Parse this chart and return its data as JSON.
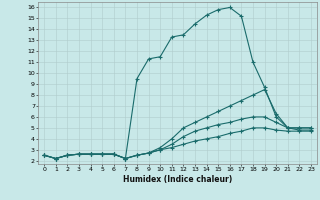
{
  "xlabel": "Humidex (Indice chaleur)",
  "bg_color": "#c8e8e8",
  "grid_color": "#b0cccc",
  "line_color": "#1a6b6b",
  "xlim": [
    -0.5,
    23.5
  ],
  "ylim": [
    1.7,
    16.5
  ],
  "xticks": [
    0,
    1,
    2,
    3,
    4,
    5,
    6,
    7,
    8,
    9,
    10,
    11,
    12,
    13,
    14,
    15,
    16,
    17,
    18,
    19,
    20,
    21,
    22,
    23
  ],
  "yticks": [
    2,
    3,
    4,
    5,
    6,
    7,
    8,
    9,
    10,
    11,
    12,
    13,
    14,
    15,
    16
  ],
  "line1_x": [
    0,
    1,
    2,
    3,
    4,
    5,
    6,
    7,
    8,
    9,
    10,
    11,
    12,
    13,
    14,
    15,
    16,
    17,
    18,
    19,
    20,
    21,
    22,
    23
  ],
  "line1_y": [
    2.5,
    2.2,
    2.5,
    2.6,
    2.6,
    2.6,
    2.6,
    2.2,
    9.5,
    11.3,
    11.5,
    13.3,
    13.5,
    14.5,
    15.3,
    15.8,
    16.0,
    15.2,
    11.0,
    8.7,
    6.0,
    5.0,
    5.0,
    5.0
  ],
  "line2_x": [
    0,
    1,
    2,
    3,
    4,
    5,
    6,
    7,
    8,
    9,
    10,
    11,
    12,
    13,
    14,
    15,
    16,
    17,
    18,
    19,
    20,
    21,
    22,
    23
  ],
  "line2_y": [
    2.5,
    2.2,
    2.5,
    2.6,
    2.6,
    2.6,
    2.6,
    2.2,
    2.5,
    2.7,
    3.2,
    4.0,
    5.0,
    5.5,
    6.0,
    6.5,
    7.0,
    7.5,
    8.0,
    8.5,
    6.3,
    5.0,
    5.0,
    5.0
  ],
  "line3_x": [
    0,
    1,
    2,
    3,
    4,
    5,
    6,
    7,
    8,
    9,
    10,
    11,
    12,
    13,
    14,
    15,
    16,
    17,
    18,
    19,
    20,
    21,
    22,
    23
  ],
  "line3_y": [
    2.5,
    2.2,
    2.5,
    2.6,
    2.6,
    2.6,
    2.6,
    2.2,
    2.5,
    2.7,
    3.0,
    3.5,
    4.2,
    4.7,
    5.0,
    5.3,
    5.5,
    5.8,
    6.0,
    6.0,
    5.5,
    5.0,
    4.8,
    4.8
  ],
  "line4_x": [
    0,
    1,
    2,
    3,
    4,
    5,
    6,
    7,
    8,
    9,
    10,
    11,
    12,
    13,
    14,
    15,
    16,
    17,
    18,
    19,
    20,
    21,
    22,
    23
  ],
  "line4_y": [
    2.5,
    2.2,
    2.5,
    2.6,
    2.6,
    2.6,
    2.6,
    2.2,
    2.5,
    2.7,
    3.0,
    3.2,
    3.5,
    3.8,
    4.0,
    4.2,
    4.5,
    4.7,
    5.0,
    5.0,
    4.8,
    4.7,
    4.7,
    4.7
  ]
}
